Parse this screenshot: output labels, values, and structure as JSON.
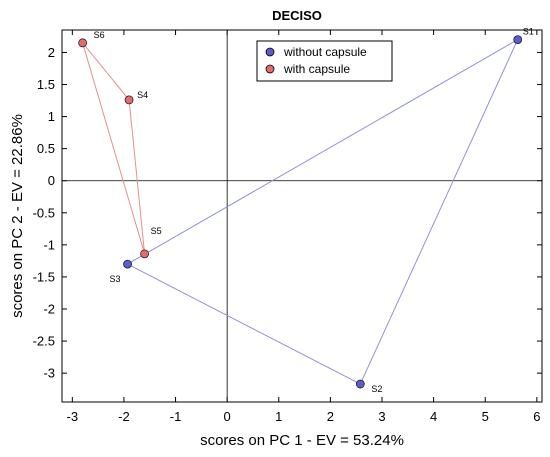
{
  "chart_data": {
    "type": "scatter",
    "title": "DECISO",
    "xlabel": "scores on PC 1 - EV = 53.24%",
    "ylabel": "scores on PC 2 - EV = 22.86%",
    "xlim": [
      -3.2,
      6.1
    ],
    "ylim": [
      -3.45,
      2.35
    ],
    "xticks": [
      -3,
      -2,
      -1,
      0,
      1,
      2,
      3,
      4,
      5,
      6
    ],
    "yticks": [
      -3,
      -2.5,
      -2,
      -1.5,
      -1,
      -0.5,
      0,
      0.5,
      1,
      1.5,
      2
    ],
    "grid": false,
    "reference_lines": {
      "x": 0,
      "y": 0
    },
    "legend_position": "top-center",
    "series": [
      {
        "name": "without capsule",
        "color": "#5b5bd6",
        "line_color": "#8f93d9",
        "polygon": true,
        "points": [
          {
            "label": "S1",
            "x": 5.63,
            "y": 2.2
          },
          {
            "label": "S2",
            "x": 2.58,
            "y": -3.17
          },
          {
            "label": "S3",
            "x": -1.93,
            "y": -1.3
          }
        ]
      },
      {
        "name": "with capsule",
        "color": "#e86a6a",
        "line_color": "#e58f8f",
        "polygon": true,
        "points": [
          {
            "label": "S4",
            "x": -1.9,
            "y": 1.26
          },
          {
            "label": "S5",
            "x": -1.6,
            "y": -1.14
          },
          {
            "label": "S6",
            "x": -2.8,
            "y": 2.15
          }
        ]
      }
    ]
  }
}
